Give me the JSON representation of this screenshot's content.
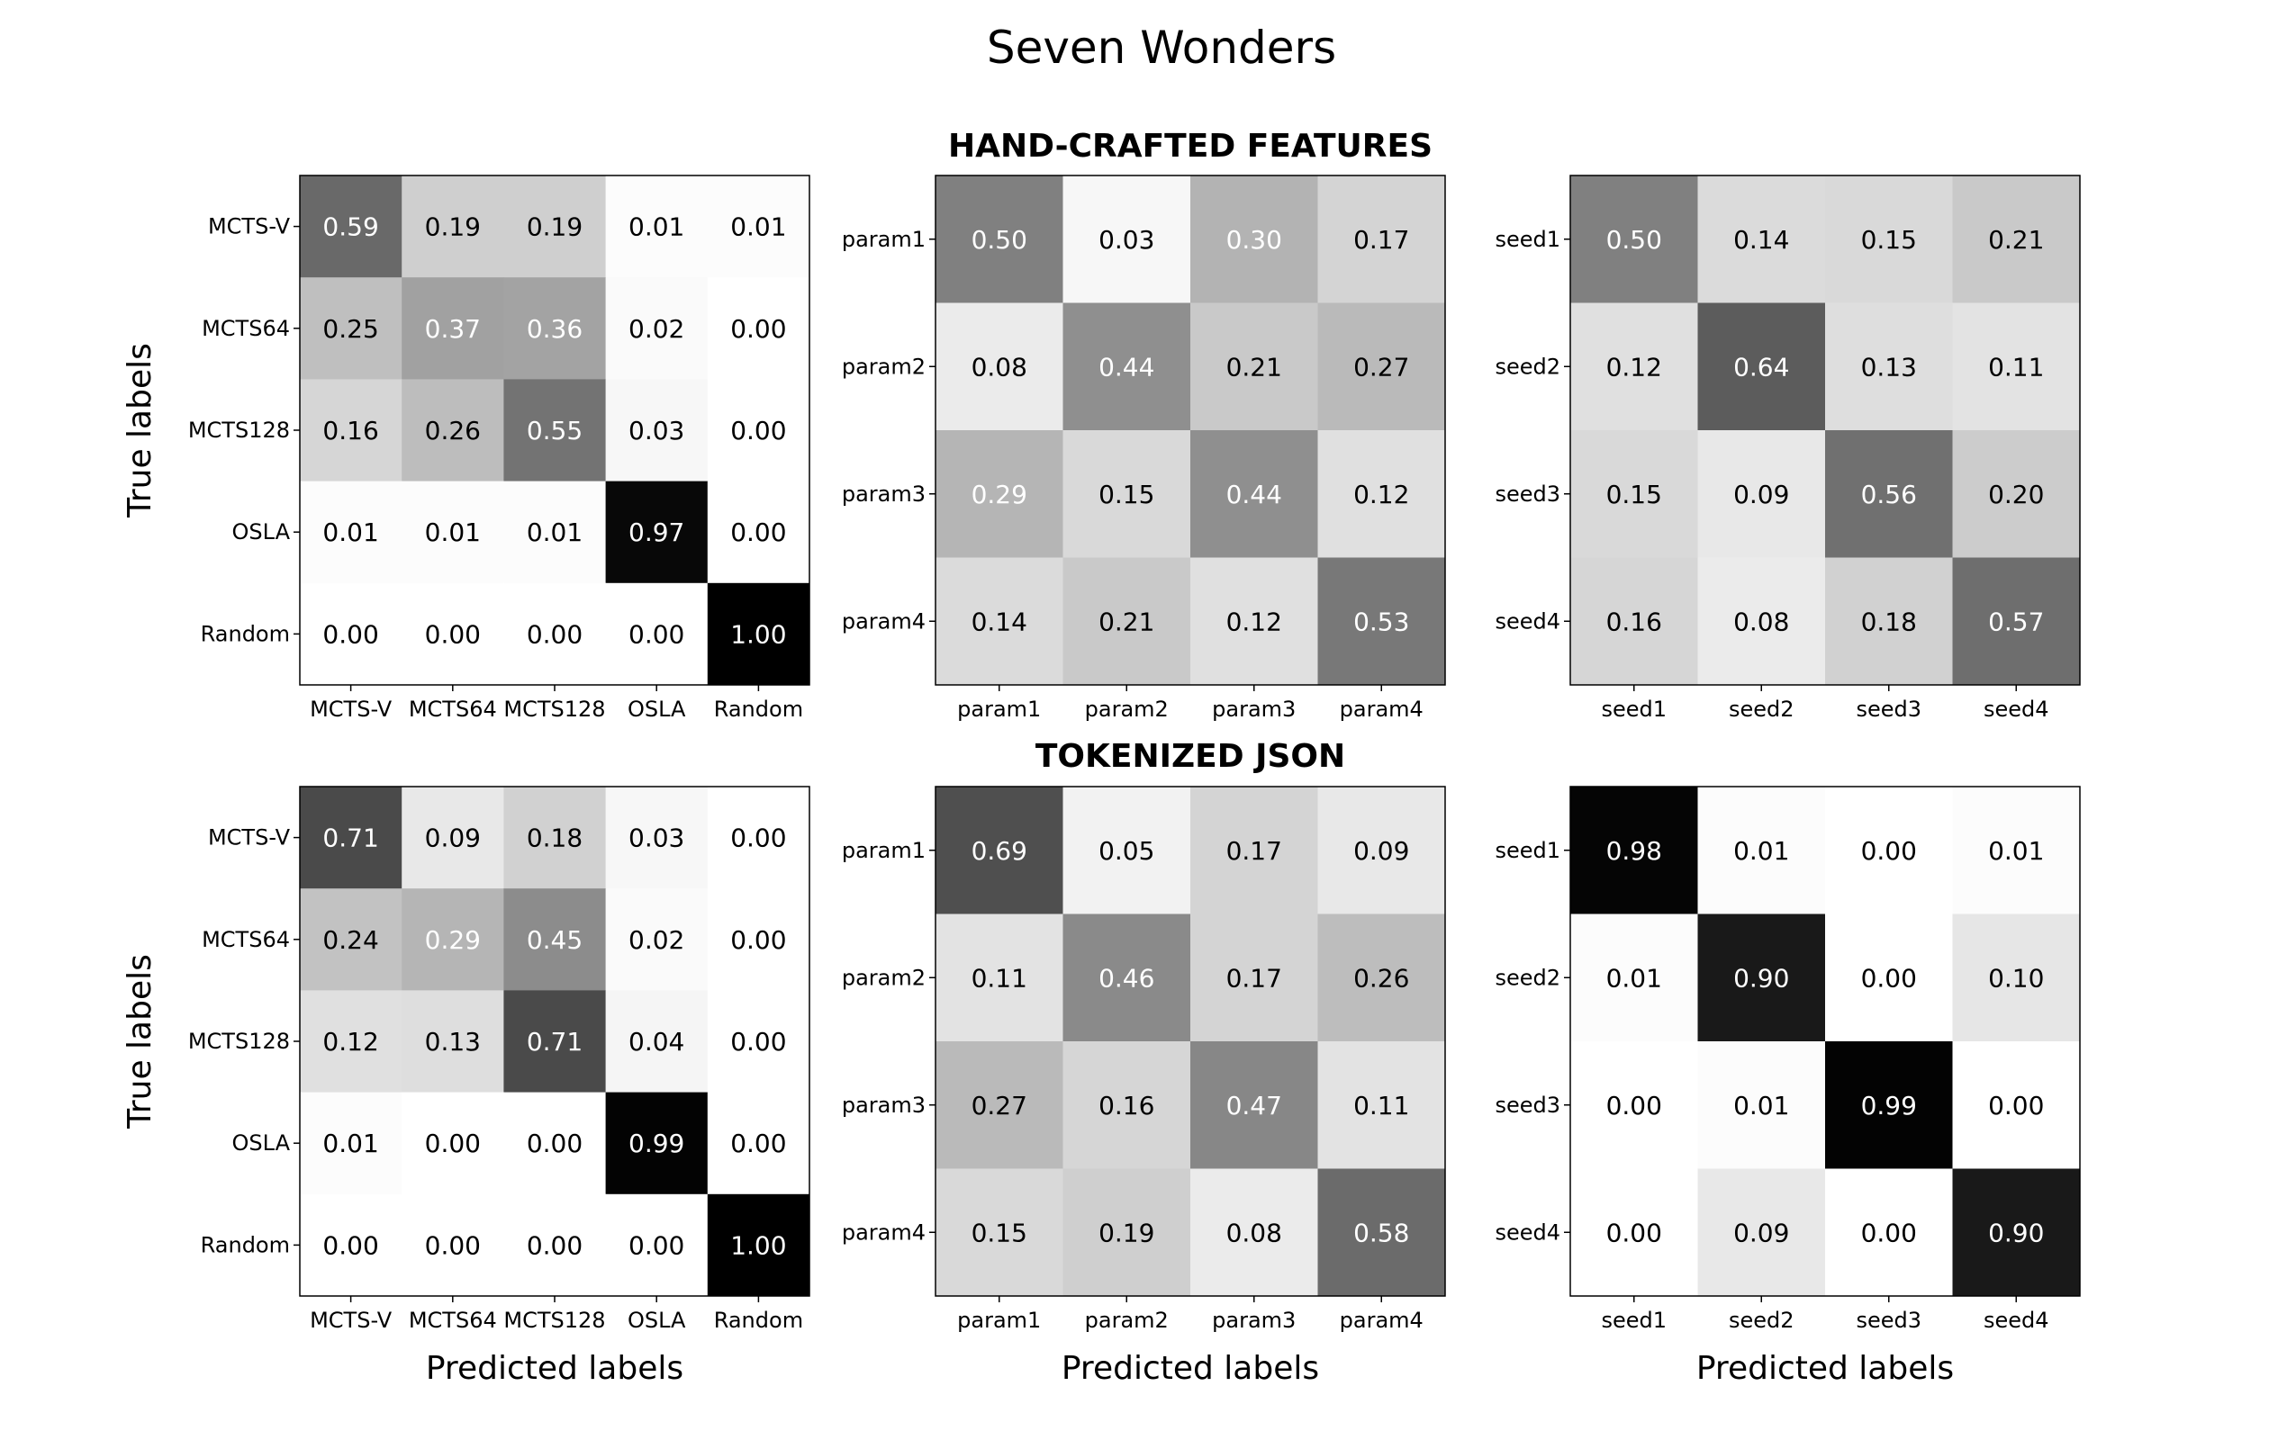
{
  "figure": {
    "title": "Seven Wonders",
    "row_titles": [
      "HAND-CRAFTED FEATURES",
      "TOKENIZED JSON"
    ],
    "ylabel": "True labels",
    "xlabel": "Predicted labels"
  },
  "chart_data": [
    {
      "type": "heatmap",
      "row": "HAND-CRAFTED FEATURES",
      "labels": [
        "MCTS-V",
        "MCTS64",
        "MCTS128",
        "OSLA",
        "Random"
      ],
      "values": [
        [
          0.59,
          0.19,
          0.19,
          0.01,
          0.01
        ],
        [
          0.25,
          0.37,
          0.36,
          0.02,
          0.0
        ],
        [
          0.16,
          0.26,
          0.55,
          0.03,
          0.0
        ],
        [
          0.01,
          0.01,
          0.01,
          0.97,
          0.0
        ],
        [
          0.0,
          0.0,
          0.0,
          0.0,
          1.0
        ]
      ],
      "ylabel": "True labels",
      "xlabel": "",
      "colormap": "Greys"
    },
    {
      "type": "heatmap",
      "row": "HAND-CRAFTED FEATURES",
      "labels": [
        "param1",
        "param2",
        "param3",
        "param4"
      ],
      "values": [
        [
          0.5,
          0.03,
          0.3,
          0.17
        ],
        [
          0.08,
          0.44,
          0.21,
          0.27
        ],
        [
          0.29,
          0.15,
          0.44,
          0.12
        ],
        [
          0.14,
          0.21,
          0.12,
          0.53
        ]
      ],
      "ylabel": "",
      "xlabel": "",
      "colormap": "Greys"
    },
    {
      "type": "heatmap",
      "row": "HAND-CRAFTED FEATURES",
      "labels": [
        "seed1",
        "seed2",
        "seed3",
        "seed4"
      ],
      "values": [
        [
          0.5,
          0.14,
          0.15,
          0.21
        ],
        [
          0.12,
          0.64,
          0.13,
          0.11
        ],
        [
          0.15,
          0.09,
          0.56,
          0.2
        ],
        [
          0.16,
          0.08,
          0.18,
          0.57
        ]
      ],
      "ylabel": "",
      "xlabel": "",
      "colormap": "Greys"
    },
    {
      "type": "heatmap",
      "row": "TOKENIZED JSON",
      "labels": [
        "MCTS-V",
        "MCTS64",
        "MCTS128",
        "OSLA",
        "Random"
      ],
      "values": [
        [
          0.71,
          0.09,
          0.18,
          0.03,
          0.0
        ],
        [
          0.24,
          0.29,
          0.45,
          0.02,
          0.0
        ],
        [
          0.12,
          0.13,
          0.71,
          0.04,
          0.0
        ],
        [
          0.01,
          0.0,
          0.0,
          0.99,
          0.0
        ],
        [
          0.0,
          0.0,
          0.0,
          0.0,
          1.0
        ]
      ],
      "ylabel": "True labels",
      "xlabel": "Predicted labels",
      "colormap": "Greys"
    },
    {
      "type": "heatmap",
      "row": "TOKENIZED JSON",
      "labels": [
        "param1",
        "param2",
        "param3",
        "param4"
      ],
      "values": [
        [
          0.69,
          0.05,
          0.17,
          0.09
        ],
        [
          0.11,
          0.46,
          0.17,
          0.26
        ],
        [
          0.27,
          0.16,
          0.47,
          0.11
        ],
        [
          0.15,
          0.19,
          0.08,
          0.58
        ]
      ],
      "ylabel": "",
      "xlabel": "Predicted labels",
      "colormap": "Greys"
    },
    {
      "type": "heatmap",
      "row": "TOKENIZED JSON",
      "labels": [
        "seed1",
        "seed2",
        "seed3",
        "seed4"
      ],
      "values": [
        [
          0.98,
          0.01,
          0.0,
          0.01
        ],
        [
          0.01,
          0.9,
          0.0,
          0.1
        ],
        [
          0.0,
          0.01,
          0.99,
          0.0
        ],
        [
          0.0,
          0.09,
          0.0,
          0.9
        ]
      ],
      "ylabel": "",
      "xlabel": "Predicted labels",
      "colormap": "Greys"
    }
  ]
}
